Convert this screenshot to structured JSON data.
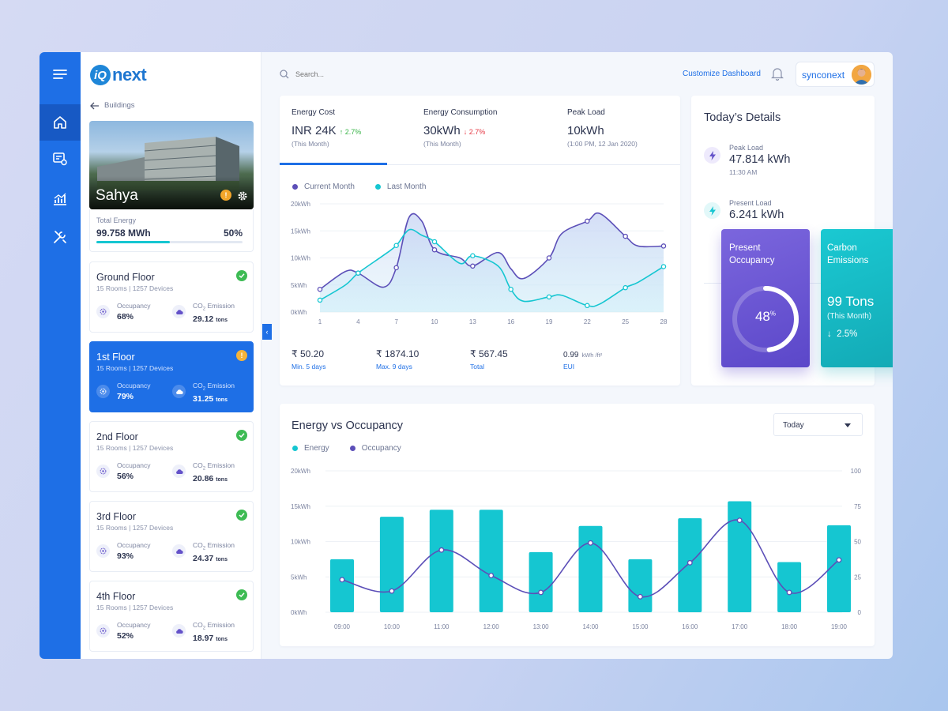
{
  "brand": {
    "logo_mark": "iQ",
    "logo_text": "next"
  },
  "rail": {
    "items": [
      "menu-icon",
      "home-icon",
      "settings-doc-icon",
      "analytics-icon",
      "tools-icon"
    ],
    "active": "home-icon"
  },
  "buildings": {
    "back_label": "Buildings",
    "name": "Sahya",
    "total_label": "Total Energy",
    "total_value": "99.758 MWh",
    "total_percent": "50%",
    "total_fraction": 0.5,
    "floors": [
      {
        "name": "Ground Floor",
        "rooms": "15 Rooms",
        "devices": "1257 Devices",
        "status": "ok",
        "occ_label": "Occupancy",
        "occ": "68%",
        "co2_label": "CO",
        "co2_sub": "2",
        "co2_label2": " Emission",
        "co2": "29.12",
        "co2_unit": "tons"
      },
      {
        "name": "1st Floor",
        "rooms": "15 Rooms",
        "devices": "1257 Devices",
        "status": "alert",
        "occ_label": "Occupancy",
        "occ": "79%",
        "co2_label": "CO",
        "co2_sub": "2",
        "co2_label2": " Emission",
        "co2": "31.25",
        "co2_unit": "tons"
      },
      {
        "name": "2nd Floor",
        "rooms": "15 Rooms",
        "devices": "1257 Devices",
        "status": "ok",
        "occ_label": "Occupancy",
        "occ": "56%",
        "co2_label": "CO",
        "co2_sub": "2",
        "co2_label2": " Emission",
        "co2": "20.86",
        "co2_unit": "tons"
      },
      {
        "name": "3rd Floor",
        "rooms": "15 Rooms",
        "devices": "1257 Devices",
        "status": "ok",
        "occ_label": "Occupancy",
        "occ": "93%",
        "co2_label": "CO",
        "co2_sub": "2",
        "co2_label2": " Emission",
        "co2": "24.37",
        "co2_unit": "tons"
      },
      {
        "name": "4th Floor",
        "rooms": "15 Rooms",
        "devices": "1257 Devices",
        "status": "ok",
        "occ_label": "Occupancy",
        "occ": "52%",
        "co2_label": "CO",
        "co2_sub": "2",
        "co2_label2": " Emission",
        "co2": "18.97",
        "co2_unit": "tons"
      }
    ],
    "active_floor": 1
  },
  "header": {
    "search_placeholder": "Search...",
    "customize_label": "Customize Dashboard",
    "user_name": "synconext"
  },
  "energy_card": {
    "stats": [
      {
        "label": "Energy Cost",
        "value": "INR 24K",
        "delta": "2.7%",
        "direction": "up",
        "sub": "(This Month)"
      },
      {
        "label": "Energy Consumption",
        "value": "30kWh",
        "delta": "2.7%",
        "direction": "down",
        "sub": "(This Month)"
      },
      {
        "label": "Peak Load",
        "value": "10kWh",
        "delta": "",
        "direction": "",
        "sub": "(1:00 PM, 12 Jan 2020)"
      }
    ],
    "legend": [
      {
        "label": "Current Month",
        "color": "#5c4fb8"
      },
      {
        "label": "Last Month",
        "color": "#15c6d1"
      }
    ],
    "summary": [
      {
        "value": "₹ 50.20",
        "caption": "Min. 5 days"
      },
      {
        "value": "₹ 1874.10",
        "caption": "Max. 9 days"
      },
      {
        "value": "₹ 567.45",
        "caption": "Total"
      },
      {
        "value": "0.99",
        "unit": "kWh /ft²",
        "caption": "EUI"
      }
    ]
  },
  "today": {
    "title": "Today’s Details",
    "peak_label": "Peak Load",
    "peak_value": "47.814 kWh",
    "peak_time": "11:30 AM",
    "present_label": "Present Load",
    "present_value": "6.241 kWh",
    "occupancy_title_1": "Present",
    "occupancy_title_2": "Occupancy",
    "occupancy_value": "48",
    "occupancy_unit": "%",
    "occupancy_fraction": 0.48,
    "carbon_title_1": "Carbon",
    "carbon_title_2": "Emissions",
    "carbon_value": "99 Tons",
    "carbon_sub": "(This Month)",
    "carbon_delta": "2.5%"
  },
  "eo_card": {
    "title": "Energy vs Occupancy",
    "select_value": "Today",
    "legend": [
      {
        "label": "Energy",
        "color": "#15c6d1"
      },
      {
        "label": "Occupancy",
        "color": "#5c4fb8"
      }
    ]
  },
  "chart_data": [
    {
      "type": "area",
      "x": [
        1,
        3,
        4,
        6,
        7,
        8,
        9,
        10,
        12,
        13,
        15,
        16,
        17,
        19,
        20,
        22,
        23,
        25,
        26,
        28
      ],
      "x_ticks": [
        "1",
        "4",
        "7",
        "10",
        "13",
        "16",
        "19",
        "22",
        "25",
        "28"
      ],
      "y_ticks": [
        "0kWh",
        "5kWh",
        "10kWh",
        "15kWh",
        "20kWh"
      ],
      "ylim": [
        0,
        20
      ],
      "series": [
        {
          "name": "Current Month",
          "color": "#5c4fb8",
          "values": [
            4.2,
            7.5,
            7.2,
            4.6,
            8.2,
            17.5,
            16.8,
            11.5,
            10,
            8.5,
            11,
            8,
            6.2,
            10,
            14.5,
            16.8,
            18.2,
            14,
            12.2,
            12.2
          ],
          "markers": [
            1,
            4,
            7,
            10,
            13,
            19,
            22,
            25,
            28
          ]
        },
        {
          "name": "Last Month",
          "color": "#15c6d1",
          "values": [
            2.2,
            5,
            7.2,
            10.5,
            12.3,
            15.2,
            14.2,
            13,
            9,
            10.4,
            8.5,
            4.2,
            2,
            2.8,
            3.1,
            1.2,
            1.5,
            4.5,
            5.5,
            8.4
          ],
          "markers": [
            1,
            4,
            7,
            10,
            13,
            16,
            19,
            22,
            25,
            28
          ]
        }
      ]
    },
    {
      "type": "bar",
      "categories": [
        "09:00",
        "10:00",
        "11:00",
        "12:00",
        "13:00",
        "14:00",
        "15:00",
        "16:00",
        "17:00",
        "18:00",
        "19:00"
      ],
      "y_ticks_left": [
        "0kWh",
        "5kWh",
        "10kWh",
        "15kWh",
        "20kWh"
      ],
      "y_ticks_right": [
        "0",
        "25",
        "50",
        "75",
        "100"
      ],
      "ylim_left": [
        0,
        20
      ],
      "ylim_right": [
        0,
        100
      ],
      "series": [
        {
          "name": "Energy",
          "axis": "left",
          "color": "#15c6d1",
          "values": [
            7.5,
            13.5,
            14.5,
            14.5,
            8.5,
            12.2,
            7.5,
            13.3,
            15.7,
            7.1,
            12.3
          ]
        },
        {
          "name": "Occupancy",
          "axis": "right",
          "color": "#5c4fb8",
          "values": [
            23,
            15,
            44,
            26,
            14,
            49,
            11,
            35,
            65,
            14,
            37
          ]
        }
      ]
    }
  ]
}
